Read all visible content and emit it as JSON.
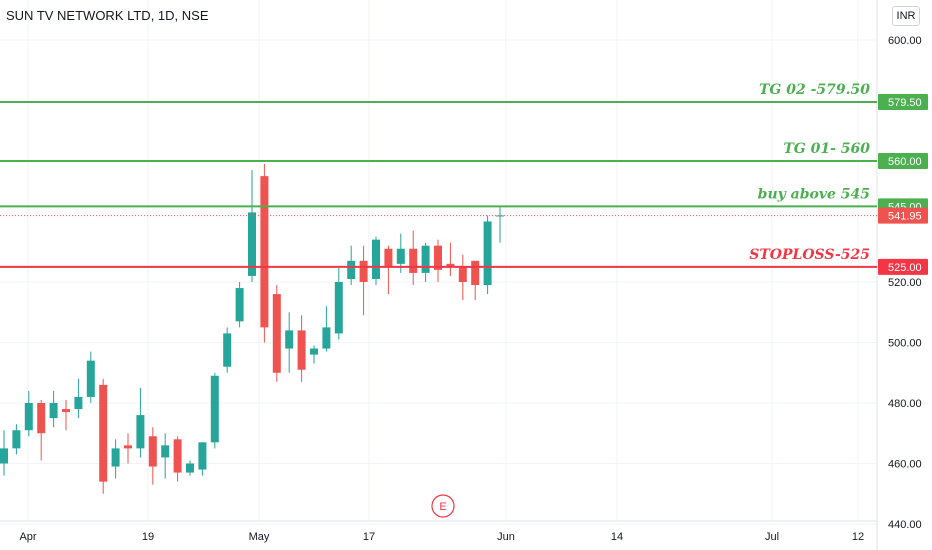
{
  "header": {
    "title": "SUN TV NETWORK LTD, 1D, NSE",
    "currency": "INR"
  },
  "colors": {
    "up": "#26a69a",
    "down": "#ef5350",
    "green_line": "#4caf50",
    "red_line": "#f23645",
    "grid": "#f0f3fa",
    "axis_text": "#131722"
  },
  "chart_data": {
    "type": "candlestick",
    "ylim": [
      440,
      615
    ],
    "y_ticks": [
      "440.00",
      "460.00",
      "480.00",
      "500.00",
      "520.00",
      "600.00"
    ],
    "x_ticks": [
      "Apr",
      "19",
      "May",
      "17",
      "Jun",
      "14",
      "Jul",
      "12"
    ],
    "event_marker": "E",
    "horizontal_lines": [
      {
        "price": 579.5,
        "label": "TG 02 -579.50",
        "tag": "579.50",
        "color": "green"
      },
      {
        "price": 560.0,
        "label": "TG 01- 560",
        "tag": "560.00",
        "color": "green"
      },
      {
        "price": 545.0,
        "label": "buy above 545",
        "tag": "545.00",
        "color": "green"
      },
      {
        "price": 525.0,
        "label": "STOPLOSS-525",
        "tag": "525.00",
        "color": "red"
      }
    ],
    "last_price": {
      "price": 541.95,
      "tag": "541.95"
    },
    "candles": [
      {
        "date": "Apr 7",
        "open": 460,
        "high": 471,
        "low": 456,
        "close": 465
      },
      {
        "date": "Apr 8",
        "open": 465,
        "high": 473,
        "low": 463,
        "close": 471
      },
      {
        "date": "Apr 9",
        "open": 471,
        "high": 484,
        "low": 469,
        "close": 480
      },
      {
        "date": "Apr 12",
        "open": 480,
        "high": 481,
        "low": 461,
        "close": 470
      },
      {
        "date": "Apr 13",
        "open": 475,
        "high": 484,
        "low": 472,
        "close": 480
      },
      {
        "date": "Apr 15",
        "open": 478,
        "high": 481,
        "low": 471,
        "close": 477
      },
      {
        "date": "Apr 16",
        "open": 478,
        "high": 488,
        "low": 475,
        "close": 482
      },
      {
        "date": "Apr 19",
        "open": 482,
        "high": 497,
        "low": 480,
        "close": 494
      },
      {
        "date": "Apr 20",
        "open": 486,
        "high": 488,
        "low": 450,
        "close": 454
      },
      {
        "date": "Apr 22",
        "open": 459,
        "high": 468,
        "low": 455,
        "close": 465
      },
      {
        "date": "Apr 23",
        "open": 466,
        "high": 470,
        "low": 460,
        "close": 465
      },
      {
        "date": "Apr 26",
        "open": 465,
        "high": 485,
        "low": 462,
        "close": 476
      },
      {
        "date": "Apr 27",
        "open": 469,
        "high": 472,
        "low": 453,
        "close": 459
      },
      {
        "date": "Apr 28",
        "open": 462,
        "high": 470,
        "low": 455,
        "close": 466
      },
      {
        "date": "Apr 29",
        "open": 468,
        "high": 469,
        "low": 454,
        "close": 457
      },
      {
        "date": "Apr 30",
        "open": 457,
        "high": 461,
        "low": 456,
        "close": 460
      },
      {
        "date": "May 3",
        "open": 458,
        "high": 467,
        "low": 456,
        "close": 467
      },
      {
        "date": "May 4",
        "open": 467,
        "high": 490,
        "low": 465,
        "close": 489
      },
      {
        "date": "May 5",
        "open": 492,
        "high": 505,
        "low": 490,
        "close": 503
      },
      {
        "date": "May 6",
        "open": 507,
        "high": 520,
        "low": 505,
        "close": 518
      },
      {
        "date": "May 7",
        "open": 522,
        "high": 557,
        "low": 520,
        "close": 543
      },
      {
        "date": "May 10",
        "open": 555,
        "high": 559,
        "low": 500,
        "close": 505
      },
      {
        "date": "May 11",
        "open": 516,
        "high": 519,
        "low": 487,
        "close": 490
      },
      {
        "date": "May 12",
        "open": 498,
        "high": 510,
        "low": 490,
        "close": 504
      },
      {
        "date": "May 13",
        "open": 504,
        "high": 509,
        "low": 487,
        "close": 491
      },
      {
        "date": "May 14",
        "open": 496,
        "high": 499,
        "low": 493,
        "close": 498
      },
      {
        "date": "May 17",
        "open": 498,
        "high": 512,
        "low": 497,
        "close": 505
      },
      {
        "date": "May 18",
        "open": 503,
        "high": 525,
        "low": 501,
        "close": 520
      },
      {
        "date": "May 19",
        "open": 521,
        "high": 532,
        "low": 519,
        "close": 527
      },
      {
        "date": "May 20",
        "open": 527,
        "high": 532,
        "low": 509,
        "close": 520
      },
      {
        "date": "May 21",
        "open": 521,
        "high": 535,
        "low": 519,
        "close": 534
      },
      {
        "date": "May 24",
        "open": 531,
        "high": 532,
        "low": 516,
        "close": 525
      },
      {
        "date": "May 25",
        "open": 526,
        "high": 536,
        "low": 523,
        "close": 531
      },
      {
        "date": "May 26",
        "open": 531,
        "high": 537,
        "low": 519,
        "close": 523
      },
      {
        "date": "May 27",
        "open": 523,
        "high": 533,
        "low": 520,
        "close": 532
      },
      {
        "date": "May 28",
        "open": 532,
        "high": 534,
        "low": 520,
        "close": 524
      },
      {
        "date": "May 31",
        "open": 526,
        "high": 533,
        "low": 522,
        "close": 525
      },
      {
        "date": "Jun 1",
        "open": 525,
        "high": 529,
        "low": 514,
        "close": 520
      },
      {
        "date": "Jun 2",
        "open": 527,
        "high": 526,
        "low": 514,
        "close": 519
      },
      {
        "date": "Jun 3",
        "open": 519,
        "high": 542,
        "low": 516,
        "close": 540
      },
      {
        "date": "Jun 4",
        "open": 542,
        "high": 545,
        "low": 533,
        "close": 542
      }
    ]
  }
}
